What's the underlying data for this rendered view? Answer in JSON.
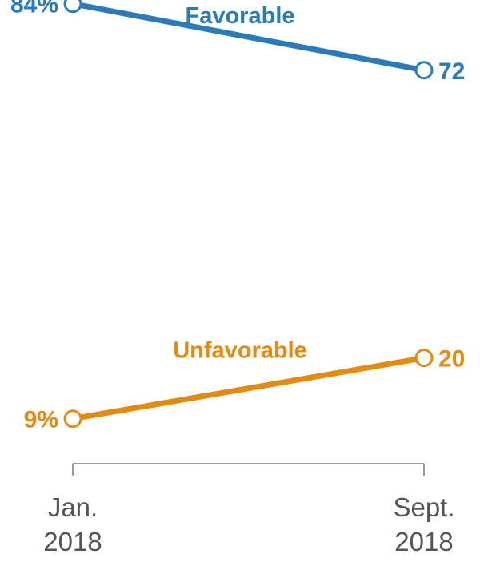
{
  "chart_data": {
    "type": "line",
    "x": [
      "Jan. 2018",
      "Sept. 2018"
    ],
    "x_tick_lines": [
      [
        "Jan.",
        "2018"
      ],
      [
        "Sept.",
        "2018"
      ]
    ],
    "ylim": [
      0,
      100
    ],
    "series": [
      {
        "name": "Favorable",
        "color": "#2b7bb9",
        "values": [
          84,
          72
        ],
        "value_labels": [
          "84%",
          "72"
        ]
      },
      {
        "name": "Unfavorable",
        "color": "#e38a12",
        "values": [
          9,
          20
        ],
        "value_labels": [
          "9%",
          "20"
        ]
      }
    ],
    "axis_color": "#999999",
    "grid": false,
    "title": "",
    "xlabel": "",
    "ylabel": ""
  }
}
